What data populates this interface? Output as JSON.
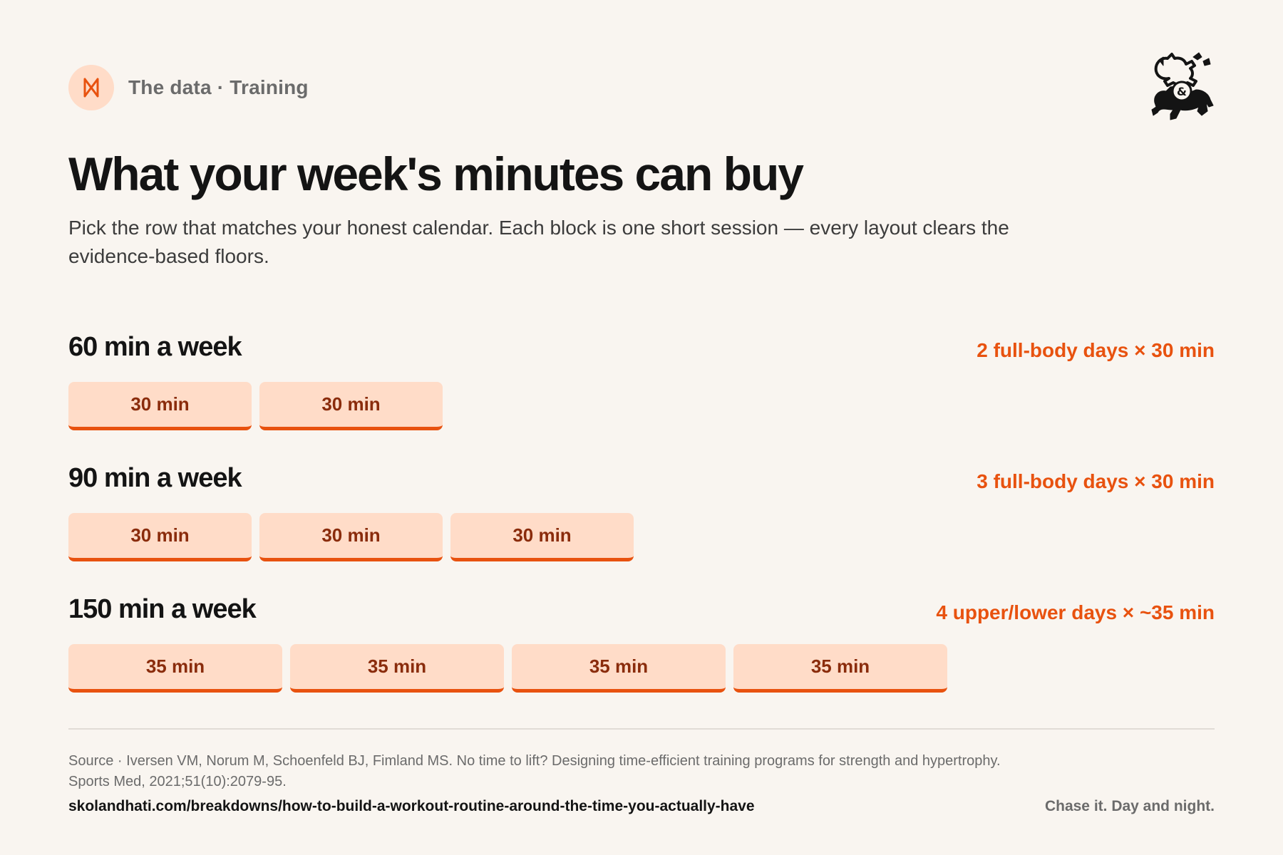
{
  "header": {
    "breadcrumb": "The data · Training"
  },
  "title": "What your week's minutes can buy",
  "subtitle": "Pick the row that matches your honest calendar.  Each block is one short session — every layout clears the evidence-based floors.",
  "tiers": [
    {
      "label": "60 min a week",
      "summary": "2 full-body days × 30 min",
      "blocks": [
        "30 min",
        "30 min"
      ]
    },
    {
      "label": "90 min a week",
      "summary": "3 full-body days × 30 min",
      "blocks": [
        "30 min",
        "30 min",
        "30 min"
      ]
    },
    {
      "label": "150 min a week",
      "summary": "4 upper/lower days × ~35 min",
      "blocks": [
        "35 min",
        "35 min",
        "35 min",
        "35 min"
      ]
    }
  ],
  "footer": {
    "source": "Source · Iversen VM, Norum M, Schoenfeld BJ, Fimland MS. No time to lift? Designing time-efficient training programs for strength and hypertrophy.  Sports Med, 2021;51(10):2079-95.",
    "url": "skolandhati.com/breakdowns/how-to-build-a-workout-routine-around-the-time-you-actually-have",
    "tagline": "Chase it. Day and night."
  },
  "colors": {
    "accent": "#e8520f",
    "block_fill": "#ffdcc8",
    "block_text": "#8a2c0c",
    "background": "#f9f5f0"
  },
  "icons": {
    "logo": "hourglass-bowtie-icon",
    "brand_mark": "horse-ampersand-emblem"
  }
}
